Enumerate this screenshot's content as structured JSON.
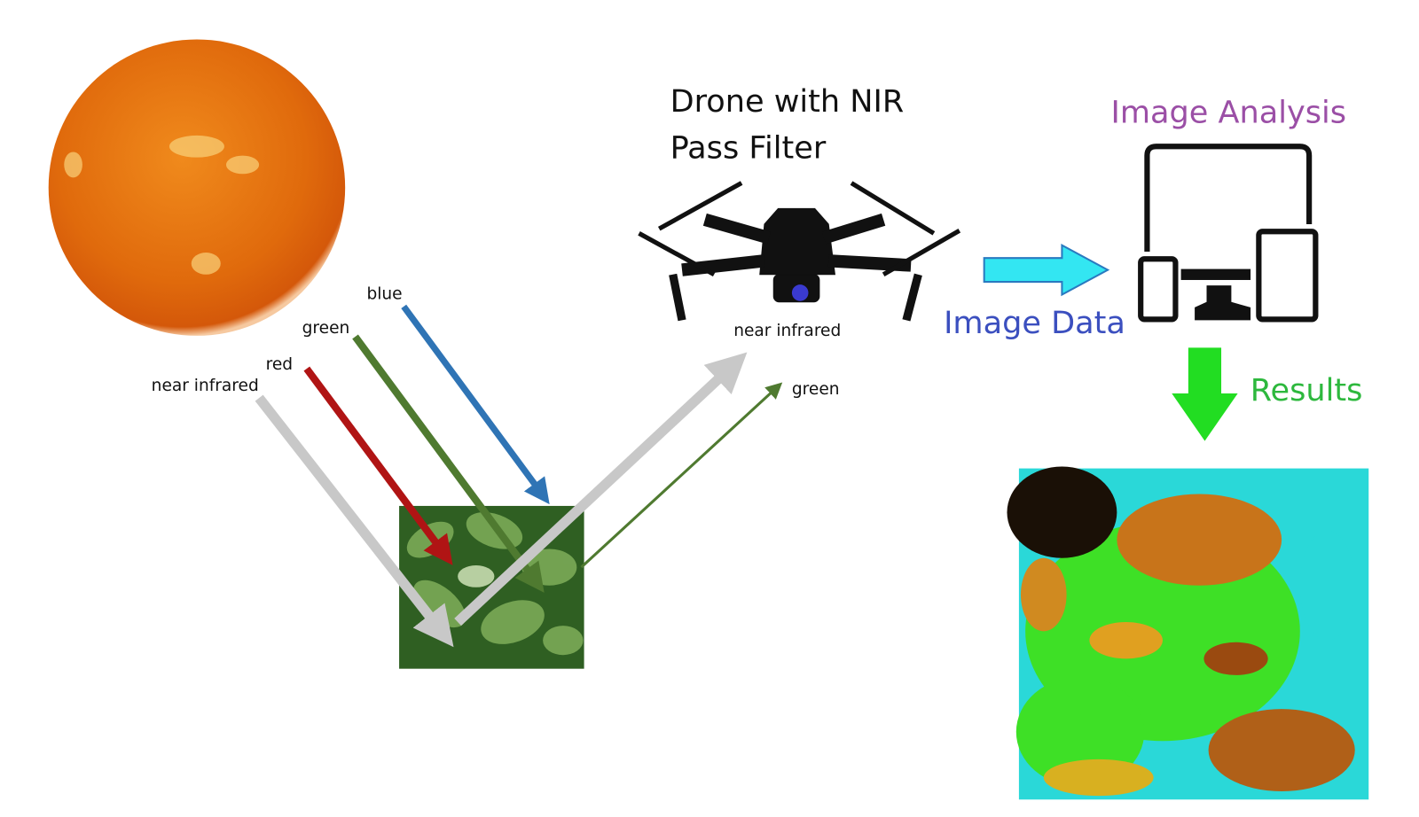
{
  "incoming_light": {
    "labels": [
      "blue",
      "green",
      "red",
      "near infrared"
    ]
  },
  "reflected_light": {
    "labels": [
      "near infrared",
      "green"
    ]
  },
  "drone": {
    "label_lines": [
      "Drone with NIR",
      "Pass Filter"
    ]
  },
  "transfer": {
    "label": "Image Data"
  },
  "analysis": {
    "label": "Image Analysis"
  },
  "output": {
    "label": "Results"
  }
}
